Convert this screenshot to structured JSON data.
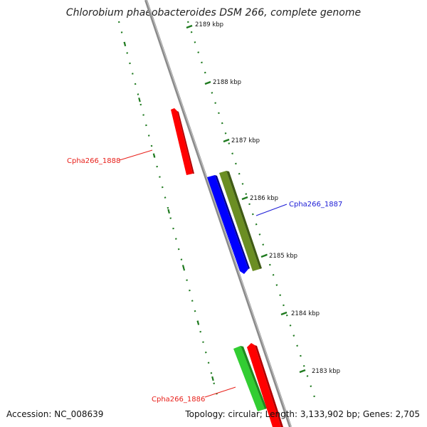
{
  "title": "Chlorobium phaeobacteroides DSM 266, complete genome",
  "footer": {
    "accession": "Accession: NC_008639",
    "summary": "Topology: circular; Length: 3,133,902 bp; Genes: 2,705"
  },
  "ticks": [
    {
      "label": "2189 kbp"
    },
    {
      "label": "2188 kbp"
    },
    {
      "label": "2187 kbp"
    },
    {
      "label": "2186 kbp"
    },
    {
      "label": "2185 kbp"
    },
    {
      "label": "2184 kbp"
    },
    {
      "label": "2183 kbp"
    }
  ],
  "gene_labels": [
    {
      "text": "Cpha266_1888",
      "color": "#e8201a"
    },
    {
      "text": "Cpha266_1887",
      "color": "#1a1ad6"
    },
    {
      "text": "Cpha266_1886",
      "color": "#e8201a"
    }
  ],
  "colors": {
    "backbone": "#8a8a8a",
    "tick": "#1f7a1f",
    "feature_red": "#ff0000",
    "feature_blue": "#0000ff",
    "feature_olive": "#6b8e23",
    "feature_green": "#32cd32"
  }
}
